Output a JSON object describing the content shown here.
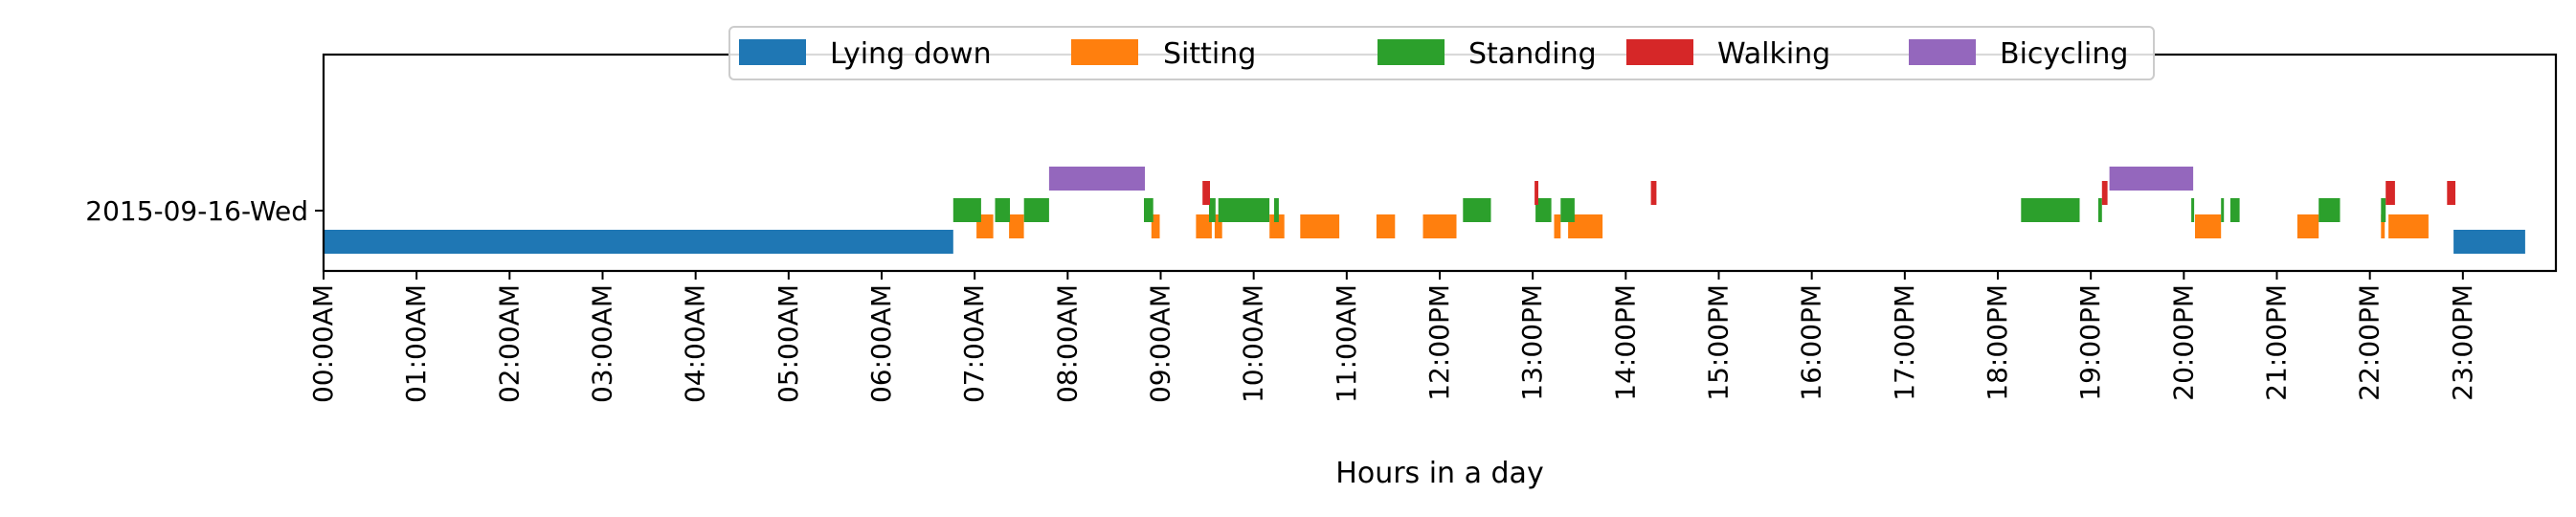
{
  "chart_data": {
    "type": "bar",
    "xlabel": "Hours in a day",
    "ylabel": "",
    "xlim": [
      0,
      24
    ],
    "x_ticks": [
      "00:00AM",
      "01:00AM",
      "02:00AM",
      "03:00AM",
      "04:00AM",
      "05:00AM",
      "06:00AM",
      "07:00AM",
      "08:00AM",
      "09:00AM",
      "10:00AM",
      "11:00AM",
      "12:00PM",
      "13:00PM",
      "14:00PM",
      "15:00PM",
      "16:00PM",
      "17:00PM",
      "18:00PM",
      "19:00PM",
      "20:00PM",
      "21:00PM",
      "22:00PM",
      "23:00PM"
    ],
    "y_tick": "2015-09-16-Wed",
    "legend_position": "top-center",
    "series": [
      {
        "name": "Lying down",
        "color": "#1f77b4",
        "intervals": [
          [
            0.0,
            6.77
          ],
          [
            22.9,
            23.67
          ]
        ]
      },
      {
        "name": "Sitting",
        "color": "#ff7f0e",
        "intervals": [
          [
            7.02,
            7.2
          ],
          [
            7.37,
            7.53
          ],
          [
            8.9,
            8.99
          ],
          [
            9.38,
            9.55
          ],
          [
            9.58,
            9.66
          ],
          [
            10.17,
            10.33
          ],
          [
            10.5,
            10.92
          ],
          [
            11.32,
            11.52
          ],
          [
            11.82,
            12.18
          ],
          [
            13.23,
            13.3
          ],
          [
            13.38,
            13.75
          ],
          [
            20.12,
            20.4
          ],
          [
            21.22,
            21.45
          ],
          [
            22.12,
            22.16
          ],
          [
            22.2,
            22.63
          ]
        ]
      },
      {
        "name": "Standing",
        "color": "#2ca02c",
        "intervals": [
          [
            6.77,
            7.07
          ],
          [
            7.22,
            7.38
          ],
          [
            7.53,
            7.8
          ],
          [
            8.82,
            8.92
          ],
          [
            9.52,
            9.59
          ],
          [
            9.62,
            10.17
          ],
          [
            10.22,
            10.27
          ],
          [
            12.25,
            12.55
          ],
          [
            13.03,
            13.2
          ],
          [
            13.3,
            13.45
          ],
          [
            18.25,
            18.88
          ],
          [
            19.08,
            19.12
          ],
          [
            20.08,
            20.11
          ],
          [
            20.4,
            20.43
          ],
          [
            20.5,
            20.6
          ],
          [
            21.45,
            21.68
          ],
          [
            22.12,
            22.17
          ]
        ]
      },
      {
        "name": "Walking",
        "color": "#d62728",
        "intervals": [
          [
            9.45,
            9.53
          ],
          [
            13.02,
            13.06
          ],
          [
            14.27,
            14.33
          ],
          [
            19.12,
            19.18
          ],
          [
            22.17,
            22.27
          ],
          [
            22.83,
            22.92
          ]
        ]
      },
      {
        "name": "Bicycling",
        "color": "#9467bd",
        "intervals": [
          [
            7.8,
            8.83
          ],
          [
            19.2,
            20.1
          ]
        ]
      }
    ]
  }
}
